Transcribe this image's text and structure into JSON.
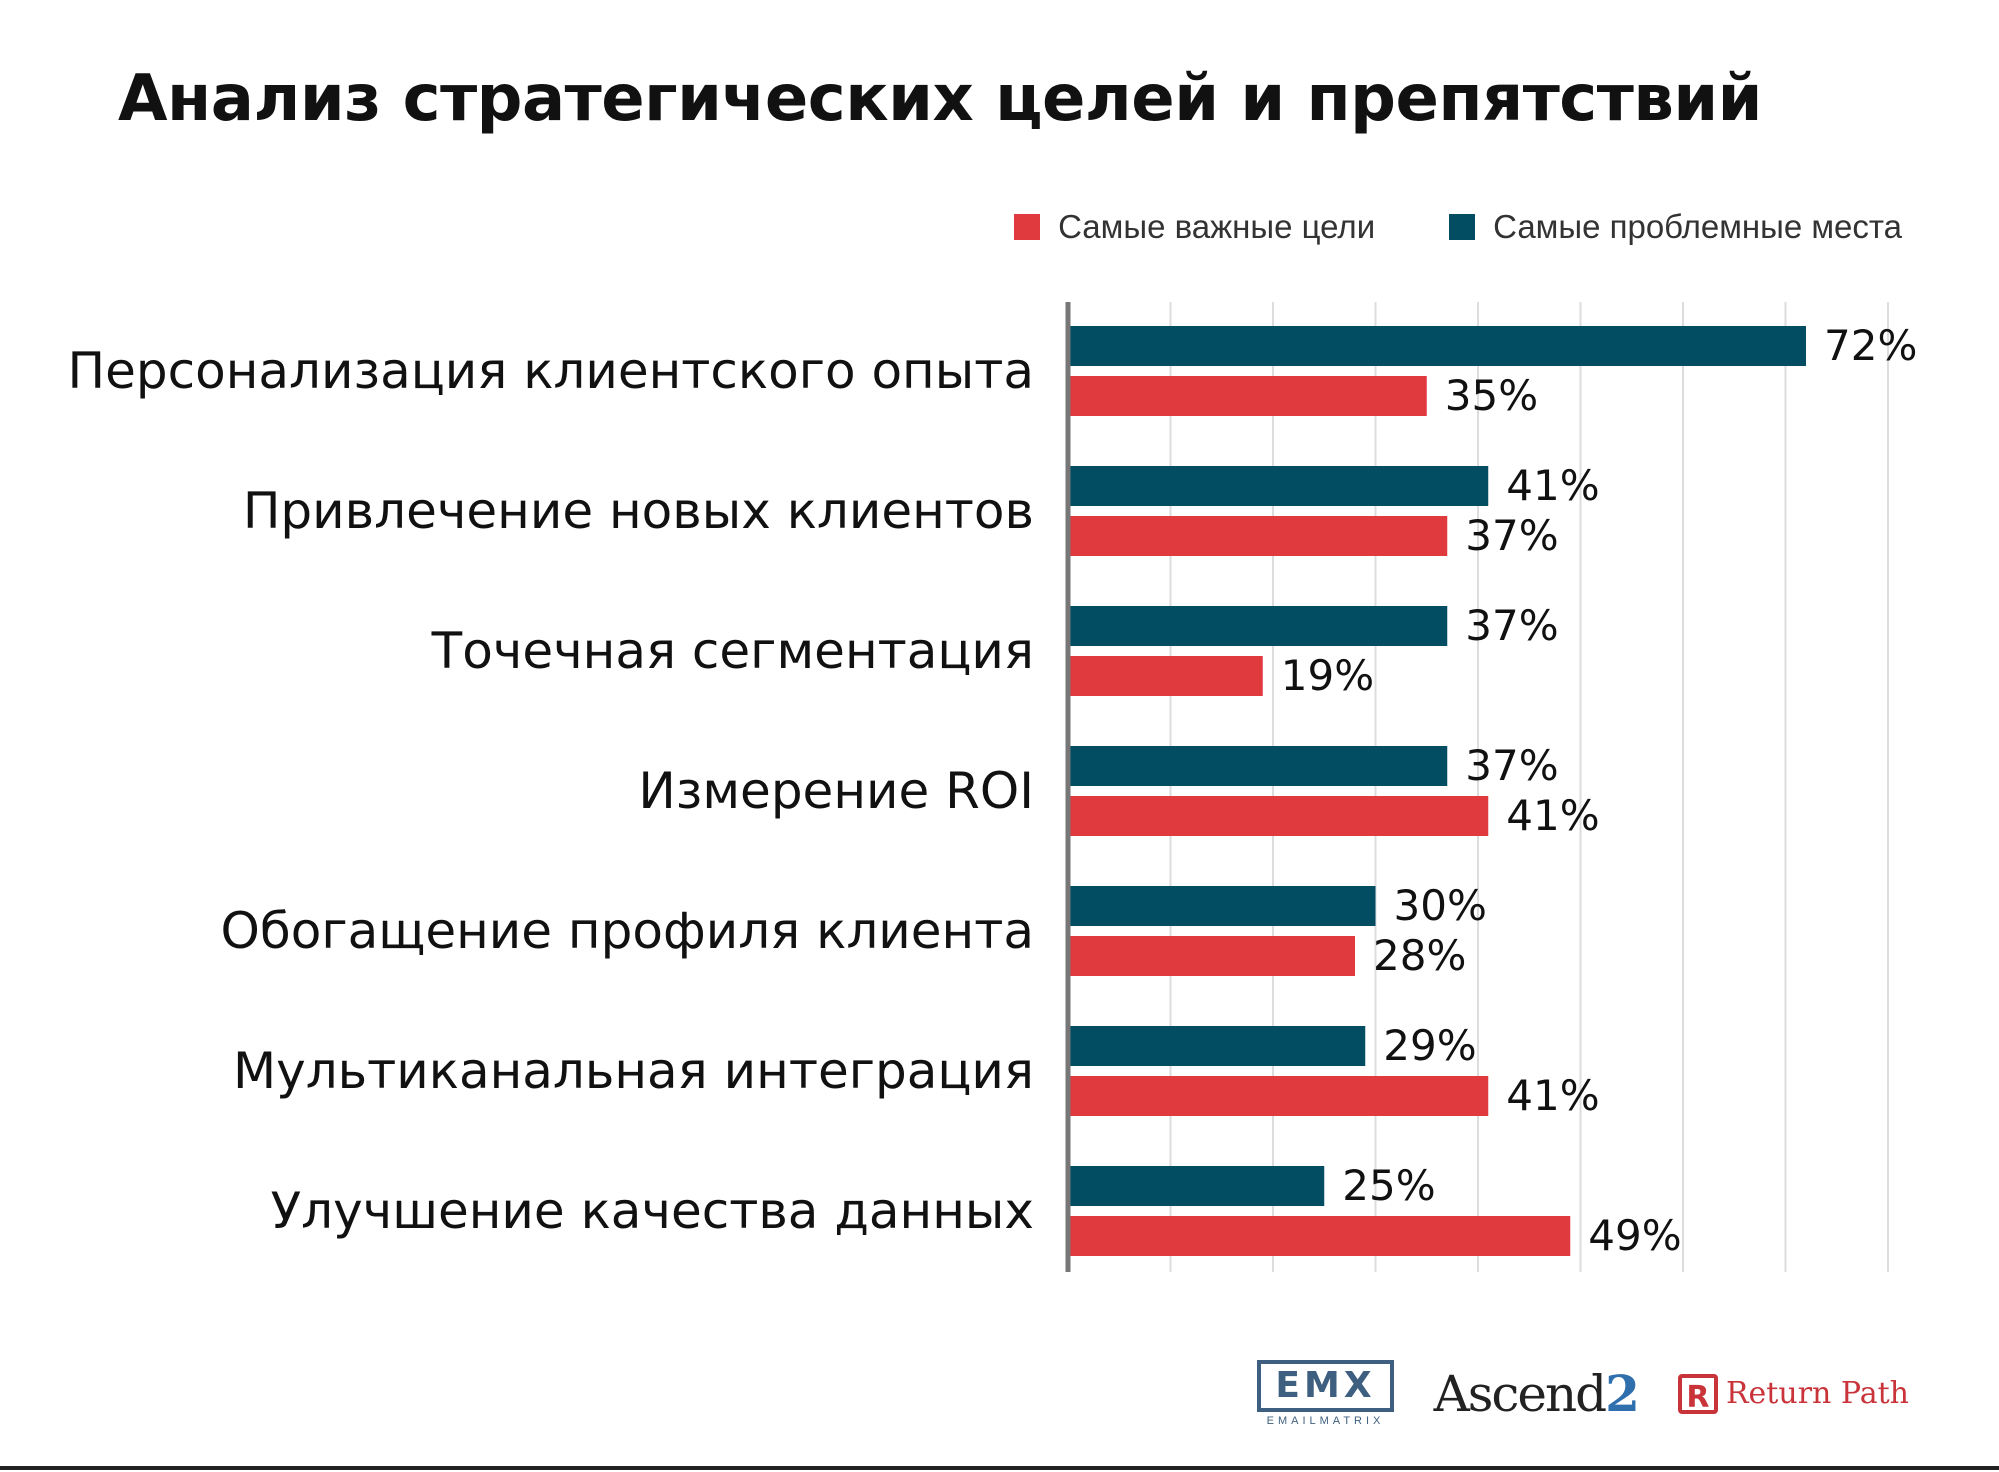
{
  "title": "Анализ стратегических целей и препятствий",
  "legend": {
    "goals_label": "Самые важные цели",
    "problems_label": "Самые проблемные места"
  },
  "colors": {
    "goals": "#e0393e",
    "problems": "#034d63",
    "axis": "#777777",
    "grid": "#dddddd"
  },
  "chart_data": {
    "type": "bar",
    "orientation": "horizontal",
    "categories": [
      "Персонализация клиентского опыта",
      "Привлечение новых клиентов",
      "Точечная сегментация",
      "Измерение ROI",
      "Обогащение профиля клиента",
      "Мультиканальная интеграция",
      "Улучшение качества данных"
    ],
    "series": [
      {
        "name": "Самые проблемные места",
        "values": [
          72,
          41,
          37,
          37,
          30,
          29,
          25
        ]
      },
      {
        "name": "Самые важные цели",
        "values": [
          35,
          37,
          19,
          41,
          28,
          41,
          49
        ]
      }
    ],
    "value_suffix": "%",
    "xlim": [
      0,
      80
    ],
    "grid": true,
    "legend_position": "top-right"
  },
  "logos": {
    "emx": "EMX",
    "emx_sub": "EMAILMATRIX",
    "ascend": "Ascend",
    "ascend_num": "2",
    "returnpath": "Return Path"
  }
}
